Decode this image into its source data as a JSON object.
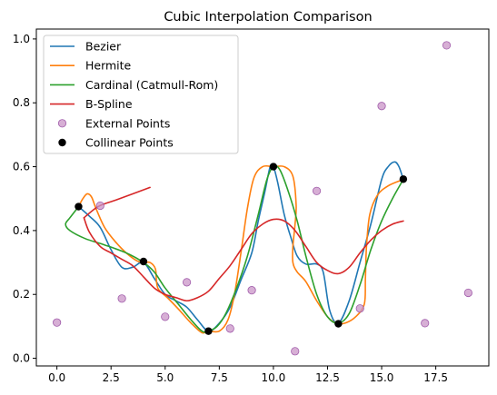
{
  "chart_data": {
    "type": "line",
    "title": "Cubic Interpolation Comparison",
    "xlabel": "",
    "ylabel": "",
    "xlim": [
      -0.95,
      19.95
    ],
    "ylim": [
      -0.024,
      1.031
    ],
    "x_ticks": [
      0.0,
      2.5,
      5.0,
      7.5,
      10.0,
      12.5,
      15.0,
      17.5
    ],
    "x_tick_labels": [
      "0.0",
      "2.5",
      "5.0",
      "7.5",
      "10.0",
      "12.5",
      "15.0",
      "17.5"
    ],
    "y_ticks": [
      0.0,
      0.2,
      0.4,
      0.6,
      0.8,
      1.0
    ],
    "y_tick_labels": [
      "0.0",
      "0.2",
      "0.4",
      "0.6",
      "0.8",
      "1.0"
    ],
    "grid": false,
    "legend_position": "top-left",
    "series": [
      {
        "name": "Bezier",
        "color": "#1f77b4",
        "points": [
          [
            1,
            0.475
          ],
          [
            1.5,
            0.445
          ],
          [
            2,
            0.41
          ],
          [
            2.5,
            0.34
          ],
          [
            3,
            0.285
          ],
          [
            3.5,
            0.285
          ],
          [
            4,
            0.3
          ],
          [
            4.5,
            0.25
          ],
          [
            5,
            0.2
          ],
          [
            5.5,
            0.18
          ],
          [
            6,
            0.16
          ],
          [
            6.5,
            0.12
          ],
          [
            7,
            0.085
          ],
          [
            7.5,
            0.11
          ],
          [
            8,
            0.16
          ],
          [
            8.5,
            0.245
          ],
          [
            9,
            0.33
          ],
          [
            9.3,
            0.43
          ],
          [
            9.6,
            0.52
          ],
          [
            9.85,
            0.6
          ],
          [
            10,
            0.6
          ],
          [
            10.2,
            0.55
          ],
          [
            10.5,
            0.45
          ],
          [
            10.8,
            0.38
          ],
          [
            11.1,
            0.32
          ],
          [
            11.5,
            0.295
          ],
          [
            12,
            0.295
          ],
          [
            12.3,
            0.27
          ],
          [
            12.6,
            0.15
          ],
          [
            13,
            0.11
          ],
          [
            13.5,
            0.18
          ],
          [
            14,
            0.3
          ],
          [
            14.5,
            0.42
          ],
          [
            15,
            0.56
          ],
          [
            15.3,
            0.6
          ],
          [
            15.6,
            0.615
          ],
          [
            15.8,
            0.6
          ],
          [
            16,
            0.56
          ]
        ]
      },
      {
        "name": "Hermite",
        "color": "#ff7f0e",
        "points": [
          [
            1,
            0.475
          ],
          [
            1.2,
            0.5
          ],
          [
            1.4,
            0.515
          ],
          [
            1.6,
            0.505
          ],
          [
            1.8,
            0.47
          ],
          [
            2.2,
            0.41
          ],
          [
            2.7,
            0.365
          ],
          [
            3.2,
            0.33
          ],
          [
            3.7,
            0.305
          ],
          [
            4,
            0.3
          ],
          [
            4.3,
            0.3
          ],
          [
            4.55,
            0.28
          ],
          [
            4.6,
            0.24
          ],
          [
            4.7,
            0.215
          ],
          [
            5.1,
            0.19
          ],
          [
            5.6,
            0.155
          ],
          [
            6.2,
            0.11
          ],
          [
            6.7,
            0.08
          ],
          [
            7,
            0.085
          ],
          [
            7.5,
            0.085
          ],
          [
            7.9,
            0.12
          ],
          [
            8.2,
            0.2
          ],
          [
            8.5,
            0.33
          ],
          [
            8.8,
            0.47
          ],
          [
            9.1,
            0.565
          ],
          [
            9.5,
            0.6
          ],
          [
            10,
            0.6
          ],
          [
            10.5,
            0.6
          ],
          [
            10.9,
            0.57
          ],
          [
            11.05,
            0.48
          ],
          [
            11,
            0.42
          ],
          [
            10.9,
            0.35
          ],
          [
            10.9,
            0.3
          ],
          [
            11.1,
            0.27
          ],
          [
            11.5,
            0.24
          ],
          [
            12,
            0.18
          ],
          [
            12.5,
            0.13
          ],
          [
            12.9,
            0.11
          ],
          [
            13.3,
            0.11
          ],
          [
            13.8,
            0.13
          ],
          [
            14.2,
            0.17
          ],
          [
            14.25,
            0.25
          ],
          [
            14.3,
            0.35
          ],
          [
            14.45,
            0.45
          ],
          [
            14.8,
            0.51
          ],
          [
            15.3,
            0.54
          ],
          [
            16,
            0.56
          ]
        ]
      },
      {
        "name": "Cardinal (Catmull-Rom)",
        "color": "#2ca02c",
        "points": [
          [
            1,
            0.475
          ],
          [
            0.6,
            0.44
          ],
          [
            0.4,
            0.42
          ],
          [
            0.6,
            0.4
          ],
          [
            1.3,
            0.375
          ],
          [
            2.2,
            0.355
          ],
          [
            3.2,
            0.33
          ],
          [
            4,
            0.3
          ],
          [
            4.5,
            0.27
          ],
          [
            5,
            0.22
          ],
          [
            5.6,
            0.17
          ],
          [
            6.2,
            0.12
          ],
          [
            6.7,
            0.085
          ],
          [
            7,
            0.085
          ],
          [
            7.4,
            0.1
          ],
          [
            7.8,
            0.14
          ],
          [
            8.3,
            0.22
          ],
          [
            8.8,
            0.32
          ],
          [
            9.3,
            0.45
          ],
          [
            9.7,
            0.56
          ],
          [
            10,
            0.6
          ],
          [
            10.3,
            0.59
          ],
          [
            10.7,
            0.52
          ],
          [
            11.1,
            0.43
          ],
          [
            11.5,
            0.32
          ],
          [
            12,
            0.2
          ],
          [
            12.5,
            0.13
          ],
          [
            13,
            0.11
          ],
          [
            13.5,
            0.14
          ],
          [
            14,
            0.23
          ],
          [
            14.5,
            0.34
          ],
          [
            15,
            0.43
          ],
          [
            15.5,
            0.5
          ],
          [
            16,
            0.56
          ]
        ]
      },
      {
        "name": "B-Spline",
        "color": "#d62728",
        "points": [
          [
            1.25,
            0.44
          ],
          [
            1.5,
            0.395
          ],
          [
            2,
            0.35
          ],
          [
            2.5,
            0.33
          ],
          [
            3,
            0.31
          ],
          [
            3.5,
            0.29
          ],
          [
            4,
            0.255
          ],
          [
            4.5,
            0.22
          ],
          [
            5,
            0.2
          ],
          [
            5.5,
            0.19
          ],
          [
            6,
            0.18
          ],
          [
            6.5,
            0.19
          ],
          [
            7,
            0.21
          ],
          [
            7.5,
            0.25
          ],
          [
            8,
            0.29
          ],
          [
            8.5,
            0.34
          ],
          [
            9,
            0.39
          ],
          [
            9.5,
            0.42
          ],
          [
            10,
            0.435
          ],
          [
            10.5,
            0.43
          ],
          [
            11,
            0.4
          ],
          [
            11.5,
            0.35
          ],
          [
            12,
            0.3
          ],
          [
            12.5,
            0.275
          ],
          [
            13,
            0.265
          ],
          [
            13.5,
            0.285
          ],
          [
            14,
            0.33
          ],
          [
            14.5,
            0.37
          ],
          [
            15,
            0.4
          ],
          [
            15.5,
            0.42
          ],
          [
            16,
            0.43
          ]
        ]
      },
      {
        "name": "B-Spline (start hook)",
        "legend": false,
        "color": "#d62728",
        "points": [
          [
            1.25,
            0.44
          ],
          [
            1.9,
            0.475
          ],
          [
            2.7,
            0.495
          ],
          [
            3.5,
            0.515
          ],
          [
            4.3,
            0.535
          ]
        ]
      }
    ],
    "scatter_series": [
      {
        "name": "External Points",
        "color": "#c994c7",
        "edge_color": "#a15dab",
        "points": [
          [
            0,
            0.112
          ],
          [
            2,
            0.478
          ],
          [
            3,
            0.187
          ],
          [
            5,
            0.13
          ],
          [
            6,
            0.238
          ],
          [
            8,
            0.093
          ],
          [
            9,
            0.213
          ],
          [
            11,
            0.022
          ],
          [
            12,
            0.524
          ],
          [
            14,
            0.156
          ],
          [
            15,
            0.79
          ],
          [
            17,
            0.11
          ],
          [
            18,
            0.98
          ],
          [
            19,
            0.205
          ]
        ]
      },
      {
        "name": "Collinear Points",
        "color": "#000000",
        "points": [
          [
            1,
            0.475
          ],
          [
            4,
            0.303
          ],
          [
            7,
            0.085
          ],
          [
            10,
            0.6
          ],
          [
            13,
            0.108
          ],
          [
            16,
            0.561
          ]
        ]
      }
    ]
  }
}
